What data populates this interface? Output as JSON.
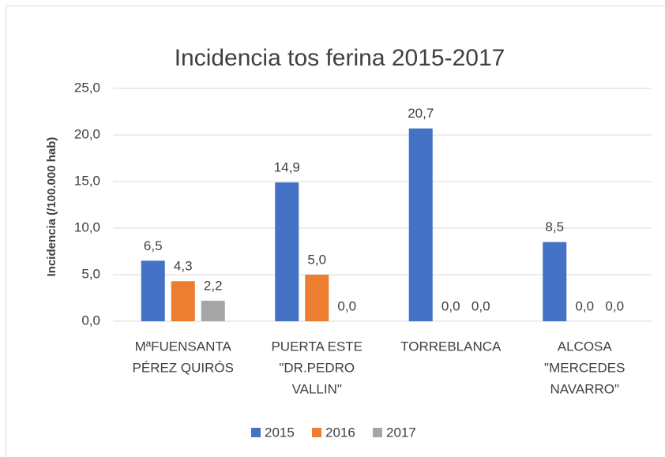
{
  "chart_data": {
    "type": "bar",
    "title": "Incidencia tos ferina 2015-2017",
    "y_label": "Incidencia (/100.000 hab)",
    "categories": [
      [
        "MªFUENSANTA",
        "PÉREZ QUIRÓS"
      ],
      [
        "PUERTA ESTE",
        "\"DR.PEDRO",
        "VALLIN\""
      ],
      [
        "TORREBLANCA"
      ],
      [
        "ALCOSA",
        "\"MERCEDES",
        "NAVARRO\""
      ]
    ],
    "series": [
      {
        "name": "2015",
        "color": "#4472c4",
        "values": [
          6.5,
          14.9,
          20.7,
          8.5
        ],
        "value_labels": [
          "6,5",
          "14,9",
          "20,7",
          "8,5"
        ]
      },
      {
        "name": "2016",
        "color": "#ed7d31",
        "values": [
          4.3,
          5.0,
          0.0,
          0.0
        ],
        "value_labels": [
          "4,3",
          "5,0",
          "0,0",
          "0,0"
        ]
      },
      {
        "name": "2017",
        "color": "#a5a5a5",
        "values": [
          2.2,
          0.0,
          0.0,
          0.0
        ],
        "value_labels": [
          "2,2",
          "0,0",
          "0,0",
          "0,0"
        ]
      }
    ],
    "ylim": [
      0,
      25
    ],
    "yticks": [
      {
        "value": 0,
        "label": "0,0"
      },
      {
        "value": 5,
        "label": "5,0"
      },
      {
        "value": 10,
        "label": "10,0"
      },
      {
        "value": 15,
        "label": "15,0"
      },
      {
        "value": 20,
        "label": "20,0"
      },
      {
        "value": 25,
        "label": "25,0"
      }
    ],
    "grid": true,
    "legend": "bottom"
  }
}
